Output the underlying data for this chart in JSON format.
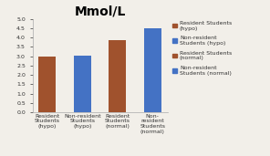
{
  "title": "Mmol/L",
  "categories": [
    "Resident\nStudents\n(hypo)",
    "Non-resident\nStudents\n(hypo)",
    "Resident\nStudents\n(normal)",
    "Non-\nresident\nStudents\n(normal)"
  ],
  "values": [
    3.0,
    3.05,
    3.85,
    4.5
  ],
  "bar_colors": [
    "#A0522D",
    "#4472C4",
    "#A0522D",
    "#4472C4"
  ],
  "ylim": [
    0,
    5
  ],
  "yticks": [
    0,
    0.5,
    1.0,
    1.5,
    2.0,
    2.5,
    3.0,
    3.5,
    4.0,
    4.5,
    5.0
  ],
  "legend_labels": [
    "Resident Students\n(hypo)",
    "Non-resident\nStudents (hypo)",
    "Resident Students\n(normal)",
    "Non-resident\nStudents (normal)"
  ],
  "legend_colors": [
    "#A0522D",
    "#4472C4",
    "#A0522D",
    "#4472C4"
  ],
  "background_color": "#F2EFE9",
  "title_fontsize": 10,
  "tick_fontsize": 4.5,
  "legend_fontsize": 4.5
}
